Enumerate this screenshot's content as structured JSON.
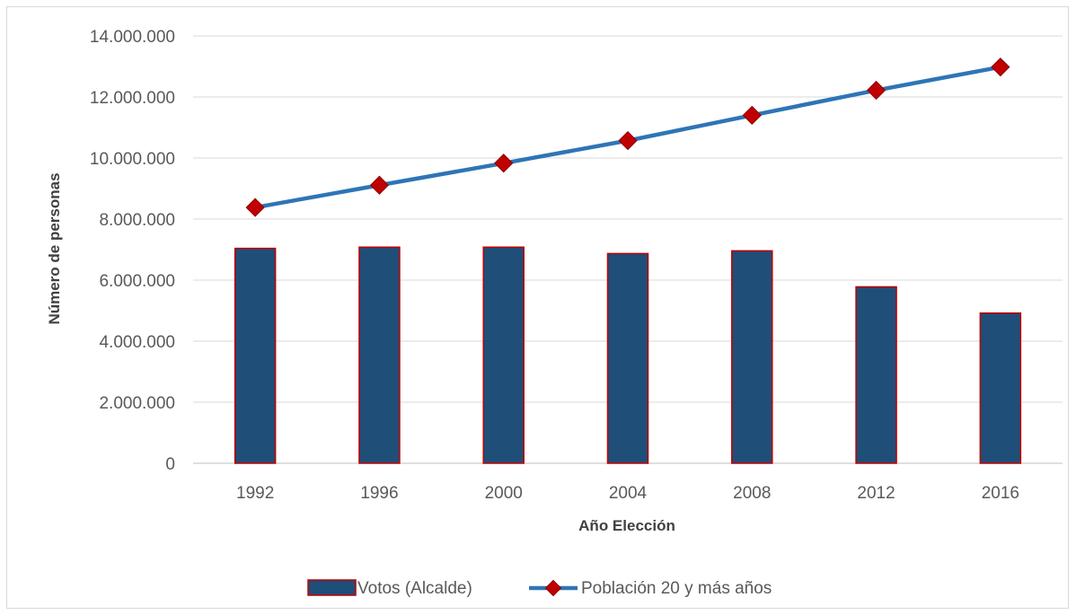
{
  "chart_data": {
    "type": "bar",
    "categories": [
      "1992",
      "1996",
      "2000",
      "2004",
      "2008",
      "2012",
      "2016"
    ],
    "series": [
      {
        "name": "Votos (Alcalde)",
        "kind": "bar",
        "values": [
          7040000,
          7080000,
          7080000,
          6870000,
          6960000,
          5780000,
          4920000
        ]
      },
      {
        "name": "Población 20 y más años",
        "kind": "line",
        "values": [
          8380000,
          9110000,
          9830000,
          10570000,
          11400000,
          12220000,
          12980000
        ]
      }
    ],
    "xlabel": "Año Elección",
    "ylabel": "Número de personas",
    "ylim": [
      0,
      14000000
    ],
    "yticks": [
      "0",
      "2.000.000",
      "4.000.000",
      "6.000.000",
      "8.000.000",
      "10.000.000",
      "12.000.000",
      "14.000.000"
    ],
    "grid": true,
    "legend_position": "bottom",
    "colors": {
      "bar_fill": "#1f4e79",
      "bar_border": "#c00000",
      "line": "#2e75b6",
      "marker_fill": "#c00000",
      "marker_border": "#8b0000",
      "grid": "#d9d9d9",
      "axis": "#bfbfbf"
    }
  }
}
